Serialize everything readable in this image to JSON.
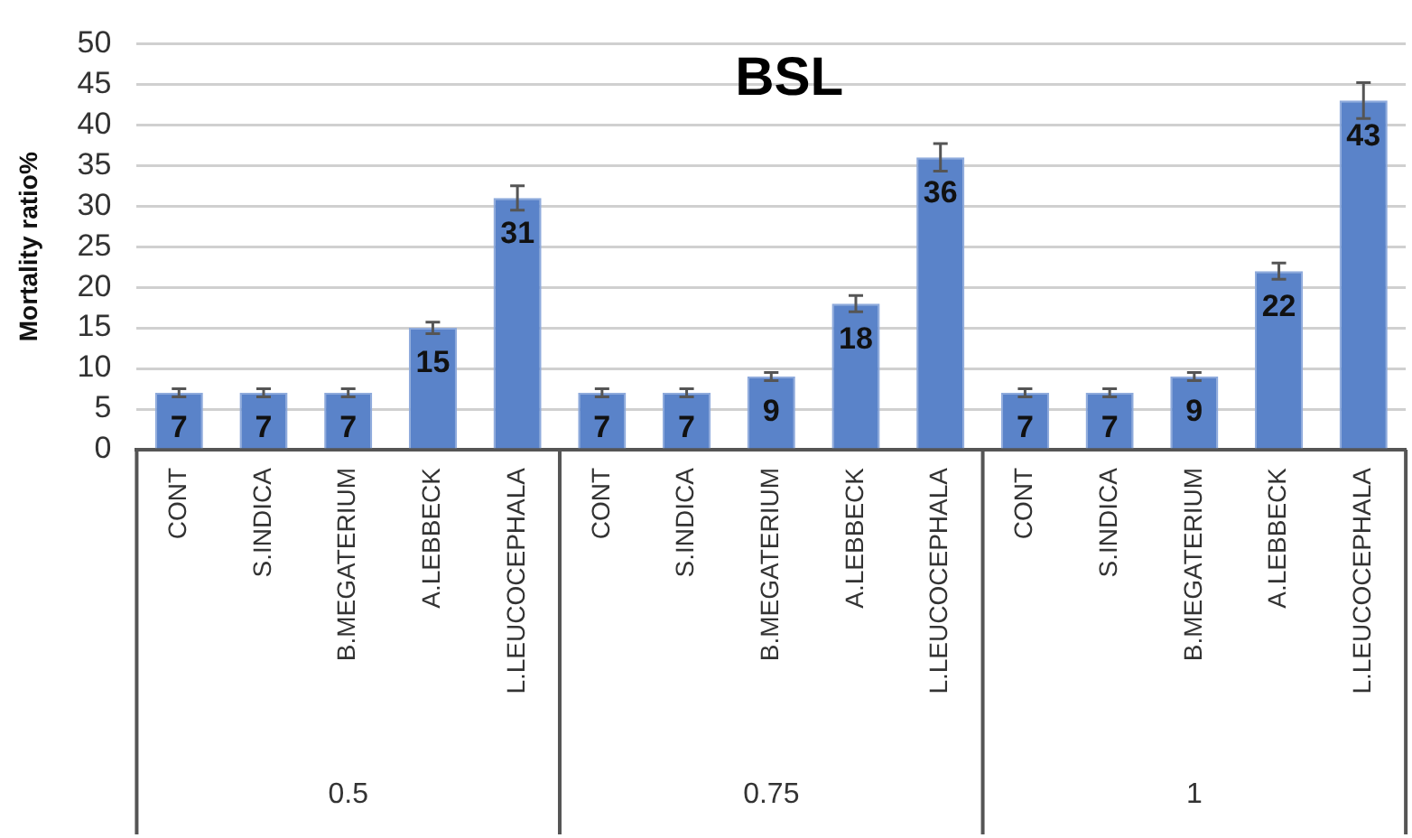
{
  "chart_data": {
    "type": "bar",
    "title": "BSL",
    "ylabel": "Mortality ratio%",
    "categories": [
      "CONT",
      "S.INDICA",
      "B.MEGATERIUM",
      "A.LEBBECK",
      "L.LEUCOCEPHALA",
      "CONT",
      "S.INDICA",
      "B.MEGATERIUM",
      "A.LEBBECK",
      "L.LEUCOCEPHALA",
      "CONT",
      "S.INDICA",
      "B.MEGATERIUM",
      "A.LEBBECK",
      "L.LEUCOCEPHALA"
    ],
    "values": [
      7,
      7,
      7,
      15,
      31,
      7,
      7,
      9,
      18,
      36,
      7,
      7,
      9,
      22,
      43
    ],
    "errors": [
      0.5,
      0.5,
      0.5,
      0.7,
      1.5,
      0.5,
      0.5,
      0.5,
      1,
      1.7,
      0.5,
      0.5,
      0.5,
      1,
      2.2
    ],
    "color": "#5a83c9",
    "annotations": [
      "0.5",
      "0.75",
      "1"
    ],
    "ylim": [
      0,
      50
    ],
    "yticks": [
      0,
      5,
      10,
      15,
      20,
      25,
      30,
      35,
      40,
      45,
      50
    ],
    "grid": "y",
    "data_labels": true
  }
}
